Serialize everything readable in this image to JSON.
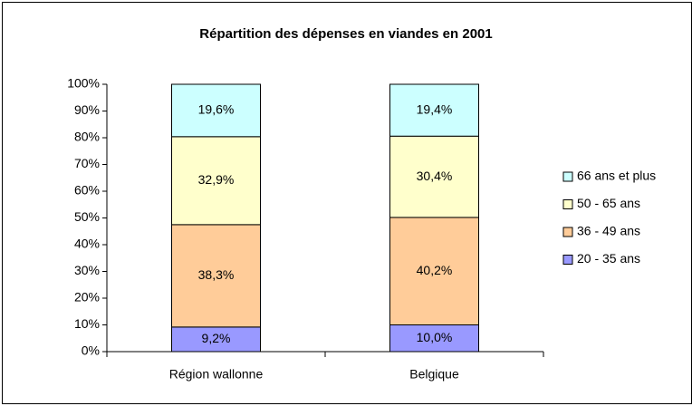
{
  "chart_data": {
    "type": "stacked_bar",
    "title": "Répartition des dépenses en viandes en 2001",
    "categories": [
      "Région wallonne",
      "Belgique"
    ],
    "series": [
      {
        "name": "20 - 35 ans",
        "color": "#9999ff",
        "values": [
          9.2,
          10.0
        ],
        "value_labels": [
          "9,2%",
          "10,0%"
        ]
      },
      {
        "name": "36 - 49 ans",
        "color": "#ffcc99",
        "values": [
          38.3,
          40.2
        ],
        "value_labels": [
          "38,3%",
          "40,2%"
        ]
      },
      {
        "name": "50 - 65 ans",
        "color": "#ffffcc",
        "values": [
          32.9,
          30.4
        ],
        "value_labels": [
          "32,9%",
          "30,4%"
        ]
      },
      {
        "name": "66 ans et plus",
        "color": "#ccffff",
        "values": [
          19.6,
          19.4
        ],
        "value_labels": [
          "19,6%",
          "19,4%"
        ]
      }
    ],
    "ylim": [
      0,
      100
    ],
    "yticks": [
      {
        "value": 0,
        "label": "0%"
      },
      {
        "value": 10,
        "label": "10%"
      },
      {
        "value": 20,
        "label": "20%"
      },
      {
        "value": 30,
        "label": "30%"
      },
      {
        "value": 40,
        "label": "40%"
      },
      {
        "value": 50,
        "label": "50%"
      },
      {
        "value": 60,
        "label": "60%"
      },
      {
        "value": 70,
        "label": "70%"
      },
      {
        "value": 80,
        "label": "80%"
      },
      {
        "value": 90,
        "label": "90%"
      },
      {
        "value": 100,
        "label": "100%"
      }
    ],
    "legend": "right",
    "grid": false
  }
}
